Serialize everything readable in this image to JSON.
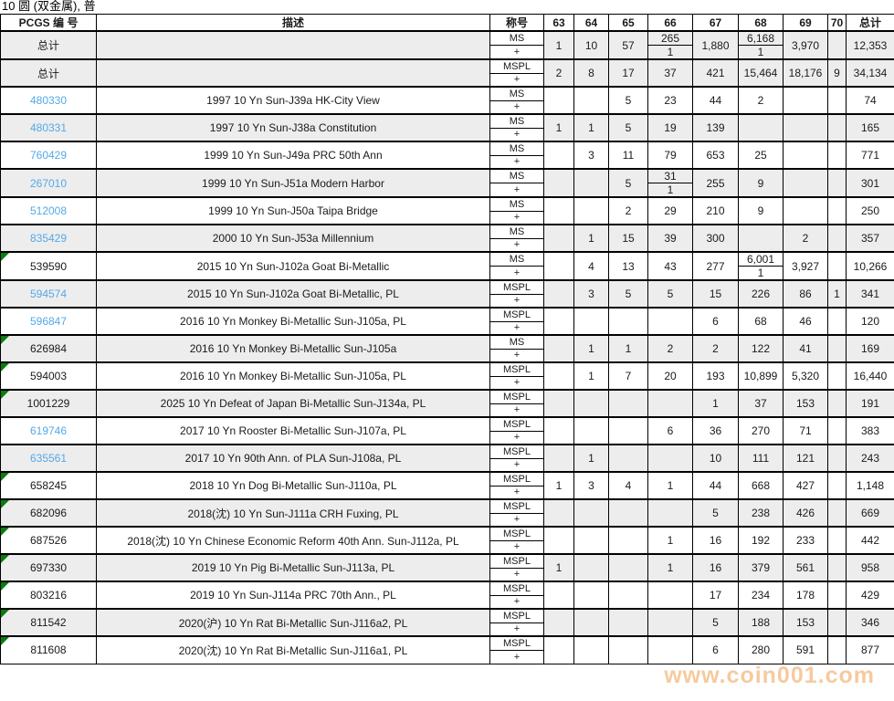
{
  "title": "10 圆 (双金属), 普",
  "watermark": "www.coin001.com",
  "colors": {
    "link_blue": "#54a9e7",
    "marker_green": "#0a7d0a",
    "watermark_orange": "#f0a050",
    "row_shade": "#ededee",
    "border": "#000000"
  },
  "table": {
    "headers": [
      "PCGS 编 号",
      "描述",
      "称号",
      "63",
      "64",
      "65",
      "66",
      "67",
      "68",
      "69",
      "70",
      "总计"
    ],
    "header_keys": [
      "pcgs",
      "description",
      "designation",
      "63",
      "64",
      "65",
      "66",
      "67",
      "68",
      "69",
      "70",
      "total"
    ],
    "grade_cols": [
      "63",
      "64",
      "65",
      "66",
      "67",
      "68",
      "69",
      "70"
    ],
    "rows": [
      {
        "pcgs": "总计",
        "summary": true,
        "link": false,
        "marker": false,
        "shaded": true,
        "desc": "",
        "designation": [
          "MS",
          "+"
        ],
        "grades": {
          "63": "1",
          "64": "10",
          "65": "57",
          "66": [
            "265",
            "1"
          ],
          "67": "1,880",
          "68": [
            "6,168",
            "1"
          ],
          "69": "3,970",
          "70": ""
        },
        "total": "12,353"
      },
      {
        "pcgs": "总计",
        "summary": true,
        "link": false,
        "marker": false,
        "shaded": true,
        "desc": "",
        "designation": [
          "MSPL",
          "+"
        ],
        "grades": {
          "63": "2",
          "64": "8",
          "65": "17",
          "66": "37",
          "67": "421",
          "68": "15,464",
          "69": "18,176",
          "70": "9"
        },
        "total": "34,134"
      },
      {
        "pcgs": "480330",
        "summary": false,
        "link": true,
        "marker": false,
        "shaded": false,
        "desc": "1997 10 Yn Sun-J39a HK-City View",
        "designation": [
          "MS",
          "+"
        ],
        "grades": {
          "65": "5",
          "66": "23",
          "67": "44",
          "68": "2"
        },
        "total": "74"
      },
      {
        "pcgs": "480331",
        "summary": false,
        "link": true,
        "marker": false,
        "shaded": true,
        "desc": "1997 10 Yn Sun-J38a Constitution",
        "designation": [
          "MS",
          "+"
        ],
        "grades": {
          "63": "1",
          "64": "1",
          "65": "5",
          "66": "19",
          "67": "139"
        },
        "total": "165"
      },
      {
        "pcgs": "760429",
        "summary": false,
        "link": true,
        "marker": false,
        "shaded": false,
        "desc": "1999 10 Yn Sun-J49a PRC 50th Ann",
        "designation": [
          "MS",
          "+"
        ],
        "grades": {
          "64": "3",
          "65": "11",
          "66": "79",
          "67": "653",
          "68": "25"
        },
        "total": "771"
      },
      {
        "pcgs": "267010",
        "summary": false,
        "link": true,
        "marker": false,
        "shaded": true,
        "desc": "1999 10 Yn Sun-J51a Modern Harbor",
        "designation": [
          "MS",
          "+"
        ],
        "grades": {
          "65": "5",
          "66": [
            "31",
            "1"
          ],
          "67": "255",
          "68": "9"
        },
        "total": "301"
      },
      {
        "pcgs": "512008",
        "summary": false,
        "link": true,
        "marker": false,
        "shaded": false,
        "desc": "1999 10 Yn Sun-J50a Taipa Bridge",
        "designation": [
          "MS",
          "+"
        ],
        "grades": {
          "65": "2",
          "66": "29",
          "67": "210",
          "68": "9"
        },
        "total": "250"
      },
      {
        "pcgs": "835429",
        "summary": false,
        "link": true,
        "marker": false,
        "shaded": true,
        "desc": "2000 10 Yn Sun-J53a Millennium",
        "designation": [
          "MS",
          "+"
        ],
        "grades": {
          "64": "1",
          "65": "15",
          "66": "39",
          "67": "300",
          "69": "2"
        },
        "total": "357"
      },
      {
        "pcgs": "539590",
        "summary": false,
        "link": false,
        "marker": true,
        "shaded": false,
        "desc": "2015 10 Yn Sun-J102a Goat Bi-Metallic",
        "designation": [
          "MS",
          "+"
        ],
        "grades": {
          "64": "4",
          "65": "13",
          "66": "43",
          "67": "277",
          "68": [
            "6,001",
            "1"
          ],
          "69": "3,927"
        },
        "total": "10,266"
      },
      {
        "pcgs": "594574",
        "summary": false,
        "link": true,
        "marker": false,
        "shaded": true,
        "desc": "2015 10 Yn Sun-J102a Goat Bi-Metallic, PL",
        "designation": [
          "MSPL",
          "+"
        ],
        "grades": {
          "64": "3",
          "65": "5",
          "66": "5",
          "67": "15",
          "68": "226",
          "69": "86",
          "70": "1"
        },
        "total": "341"
      },
      {
        "pcgs": "596847",
        "summary": false,
        "link": true,
        "marker": false,
        "shaded": false,
        "desc": "2016 10 Yn Monkey Bi-Metallic Sun-J105a, PL",
        "designation": [
          "MSPL",
          "+"
        ],
        "grades": {
          "67": "6",
          "68": "68",
          "69": "46"
        },
        "total": "120"
      },
      {
        "pcgs": "626984",
        "summary": false,
        "link": false,
        "marker": true,
        "shaded": true,
        "desc": "2016 10 Yn Monkey Bi-Metallic Sun-J105a",
        "designation": [
          "MS",
          "+"
        ],
        "grades": {
          "64": "1",
          "65": "1",
          "66": "2",
          "67": "2",
          "68": "122",
          "69": "41"
        },
        "total": "169"
      },
      {
        "pcgs": "594003",
        "summary": false,
        "link": false,
        "marker": true,
        "shaded": false,
        "desc": "2016 10 Yn Monkey Bi-Metallic Sun-J105a, PL",
        "designation": [
          "MSPL",
          "+"
        ],
        "grades": {
          "64": "1",
          "65": "7",
          "66": "20",
          "67": "193",
          "68": "10,899",
          "69": "5,320"
        },
        "total": "16,440"
      },
      {
        "pcgs": "1001229",
        "summary": false,
        "link": false,
        "marker": true,
        "shaded": true,
        "desc": "2025 10 Yn Defeat of Japan Bi-Metallic Sun-J134a, PL",
        "designation": [
          "MSPL",
          "+"
        ],
        "grades": {
          "67": "1",
          "68": "37",
          "69": "153"
        },
        "total": "191"
      },
      {
        "pcgs": "619746",
        "summary": false,
        "link": true,
        "marker": false,
        "shaded": false,
        "desc": "2017 10 Yn Rooster Bi-Metallic Sun-J107a, PL",
        "designation": [
          "MSPL",
          "+"
        ],
        "grades": {
          "66": "6",
          "67": "36",
          "68": "270",
          "69": "71"
        },
        "total": "383"
      },
      {
        "pcgs": "635561",
        "summary": false,
        "link": true,
        "marker": false,
        "shaded": true,
        "desc": "2017 10 Yn 90th Ann. of PLA Sun-J108a, PL",
        "designation": [
          "MSPL",
          "+"
        ],
        "grades": {
          "64": "1",
          "67": "10",
          "68": "111",
          "69": "121"
        },
        "total": "243"
      },
      {
        "pcgs": "658245",
        "summary": false,
        "link": false,
        "marker": true,
        "shaded": false,
        "desc": "2018 10 Yn Dog Bi-Metallic Sun-J110a, PL",
        "designation": [
          "MSPL",
          "+"
        ],
        "grades": {
          "63": "1",
          "64": "3",
          "65": "4",
          "66": "1",
          "67": "44",
          "68": "668",
          "69": "427"
        },
        "total": "1,148"
      },
      {
        "pcgs": "682096",
        "summary": false,
        "link": false,
        "marker": true,
        "shaded": true,
        "desc": "2018(沈) 10 Yn Sun-J111a CRH Fuxing, PL",
        "designation": [
          "MSPL",
          "+"
        ],
        "grades": {
          "67": "5",
          "68": "238",
          "69": "426"
        },
        "total": "669"
      },
      {
        "pcgs": "687526",
        "summary": false,
        "link": false,
        "marker": true,
        "shaded": false,
        "desc": "2018(沈) 10 Yn Chinese Economic Reform 40th Ann. Sun-J112a, PL",
        "designation": [
          "MSPL",
          "+"
        ],
        "grades": {
          "66": "1",
          "67": "16",
          "68": "192",
          "69": "233"
        },
        "total": "442"
      },
      {
        "pcgs": "697330",
        "summary": false,
        "link": false,
        "marker": true,
        "shaded": true,
        "desc": "2019 10 Yn Pig Bi-Metallic Sun-J113a, PL",
        "designation": [
          "MSPL",
          "+"
        ],
        "grades": {
          "63": "1",
          "66": "1",
          "67": "16",
          "68": "379",
          "69": "561"
        },
        "total": "958"
      },
      {
        "pcgs": "803216",
        "summary": false,
        "link": false,
        "marker": true,
        "shaded": false,
        "desc": "2019 10 Yn Sun-J114a PRC 70th Ann., PL",
        "designation": [
          "MSPL",
          "+"
        ],
        "grades": {
          "67": "17",
          "68": "234",
          "69": "178"
        },
        "total": "429"
      },
      {
        "pcgs": "811542",
        "summary": false,
        "link": false,
        "marker": true,
        "shaded": true,
        "desc": "2020(沪) 10 Yn Rat Bi-Metallic Sun-J116a2, PL",
        "designation": [
          "MSPL",
          "+"
        ],
        "grades": {
          "67": "5",
          "68": "188",
          "69": "153"
        },
        "total": "346"
      },
      {
        "pcgs": "811608",
        "summary": false,
        "link": false,
        "marker": true,
        "shaded": false,
        "desc": "2020(沈) 10 Yn Rat Bi-Metallic Sun-J116a1, PL",
        "designation": [
          "MSPL",
          "+"
        ],
        "grades": {
          "67": "6",
          "68": "280",
          "69": "591"
        },
        "total": "877"
      }
    ]
  }
}
